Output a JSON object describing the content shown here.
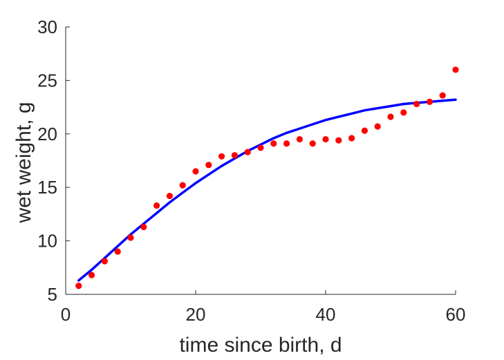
{
  "chart_data": {
    "type": "scatter",
    "xlabel": "time since birth, d",
    "ylabel": "wet weight, g",
    "xlim": [
      0,
      60
    ],
    "ylim": [
      5,
      30
    ],
    "xticks": [
      "0",
      "20",
      "40",
      "60"
    ],
    "yticks": [
      "5",
      "10",
      "15",
      "20",
      "25",
      "30"
    ],
    "grid": false,
    "box": false,
    "series": [
      {
        "type": "scatter",
        "color": "#ff0000",
        "x": [
          2,
          4,
          6,
          8,
          10,
          12,
          14,
          16,
          18,
          20,
          22,
          24,
          26,
          28,
          30,
          32,
          34,
          36,
          38,
          40,
          42,
          44,
          46,
          48,
          50,
          52,
          54,
          56,
          58,
          60
        ],
        "y": [
          5.8,
          6.8,
          8.1,
          9.0,
          10.3,
          11.3,
          13.3,
          14.2,
          15.2,
          16.5,
          17.1,
          17.9,
          18.0,
          18.3,
          18.7,
          19.1,
          19.1,
          19.5,
          19.1,
          19.5,
          19.4,
          19.6,
          20.3,
          20.7,
          21.6,
          22.0,
          22.8,
          23.0,
          23.6,
          26.0
        ]
      },
      {
        "type": "line",
        "color": "#0000ff",
        "x": [
          2,
          4,
          6,
          8,
          10,
          12,
          14,
          16,
          18,
          20,
          22,
          24,
          26,
          28,
          30,
          32,
          34,
          36,
          38,
          40,
          42,
          44,
          46,
          48,
          50,
          52,
          54,
          56,
          58,
          60
        ],
        "y": [
          6.3,
          7.3,
          8.4,
          9.5,
          10.6,
          11.6,
          12.6,
          13.6,
          14.5,
          15.4,
          16.2,
          17.0,
          17.7,
          18.4,
          19.0,
          19.6,
          20.1,
          20.5,
          20.9,
          21.3,
          21.6,
          21.9,
          22.2,
          22.4,
          22.6,
          22.8,
          22.9,
          23.0,
          23.1,
          23.2
        ]
      }
    ]
  }
}
